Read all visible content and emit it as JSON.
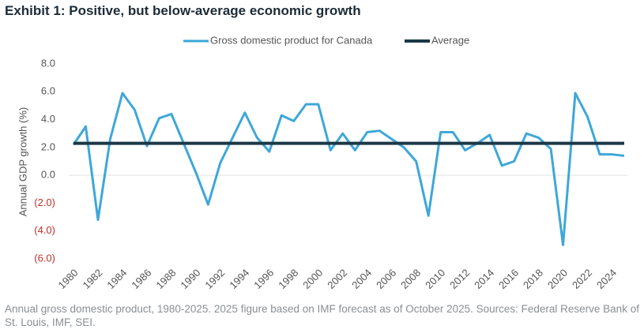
{
  "chart_data": {
    "type": "line",
    "title": "Exhibit 1: Positive, but below-average economic growth",
    "y_label": "Annual GDP growth (%)",
    "note": "Annual gross domestic product, 1980-2025. 2025 figure based on IMF forecast as of October 2025. Sources: Federal Reserve Bank of St. Louis, IMF, SEI.",
    "x": [
      1980,
      1981,
      1982,
      1983,
      1984,
      1985,
      1986,
      1987,
      1988,
      1989,
      1990,
      1991,
      1992,
      1993,
      1994,
      1995,
      1996,
      1997,
      1998,
      1999,
      2000,
      2001,
      2002,
      2003,
      2004,
      2005,
      2006,
      2007,
      2008,
      2009,
      2010,
      2011,
      2012,
      2013,
      2014,
      2015,
      2016,
      2017,
      2018,
      2019,
      2020,
      2021,
      2022,
      2023,
      2024,
      2025
    ],
    "series": [
      {
        "name": "Gross domestic product for Canada",
        "color": "#3ea7d8",
        "values": [
          2.2,
          3.5,
          -3.2,
          2.6,
          5.9,
          4.7,
          2.1,
          4.1,
          4.4,
          2.3,
          0.2,
          -2.1,
          0.9,
          2.7,
          4.5,
          2.7,
          1.7,
          4.3,
          3.9,
          5.1,
          5.1,
          1.8,
          3.0,
          1.8,
          3.1,
          3.2,
          2.6,
          2.0,
          1.0,
          -2.9,
          3.1,
          3.1,
          1.8,
          2.3,
          2.9,
          0.7,
          1.0,
          3.0,
          2.7,
          1.9,
          -5.0,
          5.9,
          4.2,
          1.5,
          1.5,
          1.4
        ]
      },
      {
        "name": "Average",
        "color": "#1c3847",
        "values": [
          2.3,
          2.3,
          2.3,
          2.3,
          2.3,
          2.3,
          2.3,
          2.3,
          2.3,
          2.3,
          2.3,
          2.3,
          2.3,
          2.3,
          2.3,
          2.3,
          2.3,
          2.3,
          2.3,
          2.3,
          2.3,
          2.3,
          2.3,
          2.3,
          2.3,
          2.3,
          2.3,
          2.3,
          2.3,
          2.3,
          2.3,
          2.3,
          2.3,
          2.3,
          2.3,
          2.3,
          2.3,
          2.3,
          2.3,
          2.3,
          2.3,
          2.3,
          2.3,
          2.3,
          2.3,
          2.3
        ]
      }
    ],
    "xlim": [
      1980,
      2025
    ],
    "xticks": [
      1980,
      1982,
      1984,
      1986,
      1988,
      1990,
      1992,
      1994,
      1996,
      1998,
      2000,
      2002,
      2004,
      2006,
      2008,
      2010,
      2012,
      2014,
      2016,
      2018,
      2020,
      2022,
      2024
    ],
    "ylim": [
      -6,
      8
    ],
    "yticks": [
      {
        "value": 8,
        "label": "8.0"
      },
      {
        "value": 6,
        "label": "6.0"
      },
      {
        "value": 4,
        "label": "4.0"
      },
      {
        "value": 2,
        "label": "2.0"
      },
      {
        "value": 0,
        "label": "0.0"
      },
      {
        "value": -2,
        "label": "(2.0)"
      },
      {
        "value": -4,
        "label": "(4.0)"
      },
      {
        "value": -6,
        "label": "(6.0)"
      }
    ],
    "legend": "top"
  }
}
